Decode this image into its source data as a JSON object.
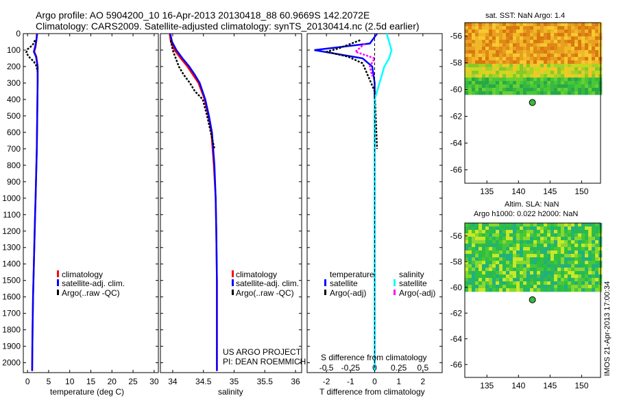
{
  "header": {
    "title_line1": "Argo profile: AO 5904200_10 16-Apr-2013 20130418_88 60.9669S 142.2072E",
    "title_line2": "Climatology: CARS2009. Satellite-adjusted climatology: synTS_20130414.nc (2.5d earlier)"
  },
  "credit": {
    "line1": "US ARGO PROJECT",
    "line2": "PI: DEAN ROEMMICH",
    "imos_stamp": "IMOS 21-Apr-2013 17:00:34"
  },
  "colors": {
    "climatology": "#ff0000",
    "satellite": "#0000ff",
    "argo": "#000000",
    "satellite_s": "#00ffff",
    "argo_s": "#ff00ff"
  },
  "panels": {
    "temperature": {
      "xlabel": "temperature (deg C)",
      "legend": [
        "climatology",
        "satellite-adj. clim.",
        "Argo(..raw -QC)"
      ]
    },
    "salinity": {
      "xlabel": "salinity",
      "legend": [
        "climatology",
        "satellite-adj. clim.",
        "Argo(..raw -QC)"
      ]
    },
    "difference": {
      "xlabel": "T difference from climatology",
      "top_label": "S difference from climatology",
      "legend_t_head": "temperature",
      "legend_s_head": "salinity",
      "legend_t": [
        "satellite",
        "Argo(-adj)"
      ],
      "legend_s": [
        "satellite",
        "Argo(-adj)"
      ]
    },
    "sst_map": {
      "title": "sat. SST: NaN Argo: 1.4"
    },
    "sla_map": {
      "title_line1": "Altim. SLA: NaN",
      "title_line2": "Argo h1000: 0.022 h2000: NaN"
    }
  },
  "chart_data": [
    {
      "type": "line",
      "name": "temperature-profile",
      "x_range": [
        -1,
        31
      ],
      "y_range": [
        2060,
        0
      ],
      "y_inverted": true,
      "xticks": [
        0,
        5,
        10,
        15,
        20,
        25,
        30
      ],
      "yticks": [
        0,
        100,
        200,
        300,
        400,
        500,
        600,
        700,
        800,
        900,
        1000,
        1100,
        1200,
        1300,
        1400,
        1500,
        1600,
        1700,
        1800,
        1900,
        2000
      ],
      "series": [
        {
          "name": "climatology",
          "x": [
            2.2,
            2.1,
            1.9,
            1.6,
            2.1,
            2.4,
            2.4,
            2.35,
            2.3,
            2.25,
            2.2,
            2.1,
            2.0,
            1.9,
            1.8,
            1.6,
            1.5,
            1.4,
            1.3,
            1.2,
            1.15,
            1.1
          ],
          "depth": [
            0,
            40,
            80,
            110,
            140,
            200,
            300,
            400,
            500,
            600,
            700,
            800,
            900,
            1000,
            1100,
            1300,
            1400,
            1500,
            1600,
            1800,
            1900,
            2050
          ]
        },
        {
          "name": "satellite-adj. clim.",
          "x": [
            2.3,
            2.1,
            1.8,
            1.5,
            2.0,
            2.4,
            2.4,
            2.35,
            2.3,
            2.25,
            2.2,
            2.1,
            2.0,
            1.9,
            1.8,
            1.6,
            1.5,
            1.4,
            1.3,
            1.2,
            1.15,
            1.1
          ],
          "depth": [
            0,
            40,
            80,
            110,
            140,
            200,
            300,
            400,
            500,
            600,
            700,
            800,
            900,
            1000,
            1100,
            1300,
            1400,
            1500,
            1600,
            1800,
            1900,
            2050
          ]
        },
        {
          "name": "Argo(..raw -QC)",
          "x": [
            1.8,
            1.2,
            0.0,
            -0.3,
            0.3,
            1.5,
            2.2,
            2.3
          ],
          "depth": [
            40,
            70,
            95,
            115,
            140,
            170,
            200,
            230
          ]
        }
      ]
    },
    {
      "type": "line",
      "name": "salinity-profile",
      "x_range": [
        33.8,
        36.1
      ],
      "y_range": [
        2060,
        0
      ],
      "y_inverted": true,
      "xticks": [
        34,
        34.5,
        35,
        35.5,
        36
      ],
      "series": [
        {
          "name": "climatology",
          "x": [
            33.95,
            33.97,
            34.03,
            34.13,
            34.24,
            34.33,
            34.42,
            34.52,
            34.58,
            34.63,
            34.67,
            34.7,
            34.71,
            34.72,
            34.72
          ],
          "depth": [
            0,
            50,
            100,
            150,
            200,
            250,
            300,
            400,
            500,
            600,
            800,
            1000,
            1200,
            1500,
            2050
          ]
        },
        {
          "name": "satellite-adj. clim.",
          "x": [
            33.96,
            33.99,
            34.06,
            34.16,
            34.27,
            34.36,
            34.44,
            34.53,
            34.59,
            34.64,
            34.68,
            34.7,
            34.71,
            34.72,
            34.72
          ],
          "depth": [
            0,
            50,
            100,
            150,
            200,
            250,
            300,
            400,
            500,
            600,
            800,
            1000,
            1200,
            1500,
            2050
          ]
        },
        {
          "name": "Argo(..raw -QC)",
          "x": [
            33.97,
            34.0,
            34.05,
            34.1,
            34.18,
            34.28,
            34.36,
            34.49,
            34.56,
            34.62,
            34.68
          ],
          "depth": [
            40,
            100,
            150,
            200,
            250,
            300,
            350,
            400,
            500,
            600,
            700
          ]
        }
      ]
    },
    {
      "type": "line",
      "name": "difference-from-climatology",
      "x_range": [
        -2.8,
        2.8
      ],
      "y_range": [
        2060,
        0
      ],
      "y_inverted": true,
      "xticks_T": [
        -2,
        -1,
        0,
        1,
        2
      ],
      "xticks_S_labels": [
        "-0.5",
        "-0.25",
        "0",
        "0.25",
        "0.5"
      ],
      "series": [
        {
          "name": "temperature satellite",
          "x": [
            0.1,
            -0.2,
            -2.5,
            -0.5,
            -0.1,
            0.0,
            0.0
          ],
          "depth": [
            0,
            60,
            100,
            150,
            200,
            300,
            2050
          ]
        },
        {
          "name": "temperature Argo(-adj)",
          "x": [
            -0.6,
            -1.5,
            -2.0,
            -1.1,
            -0.5,
            0.0,
            0.1
          ],
          "depth": [
            40,
            90,
            110,
            140,
            180,
            350,
            700
          ]
        },
        {
          "name": "salinity satellite",
          "x": [
            0.5,
            0.7,
            0.6,
            0.4,
            0.0,
            0.0
          ],
          "depth": [
            0,
            100,
            150,
            200,
            400,
            2050
          ]
        },
        {
          "name": "salinity Argo(-adj)",
          "x": [
            -0.4,
            -0.8,
            0.0,
            -0.2,
            -0.1
          ],
          "depth": [
            60,
            110,
            150,
            200,
            260
          ]
        }
      ]
    },
    {
      "type": "heatmap",
      "name": "sat-sst-map",
      "x_range": [
        131.5,
        153
      ],
      "y_range": [
        -67,
        -55
      ],
      "xticks": [
        135,
        140,
        145,
        150
      ],
      "yticks": [
        -56,
        -58,
        -60,
        -62,
        -64,
        -66
      ],
      "data_extent_lat": [
        -60.2,
        -55
      ],
      "argo_point": {
        "lon": 142.2072,
        "lat": -60.9669
      }
    },
    {
      "type": "heatmap",
      "name": "altim-sla-map",
      "x_range": [
        131.5,
        153
      ],
      "y_range": [
        -67,
        -55
      ],
      "xticks": [
        135,
        140,
        145,
        150
      ],
      "yticks": [
        -56,
        -58,
        -60,
        -62,
        -64,
        -66
      ],
      "data_extent_lat": [
        -60.1,
        -55
      ],
      "argo_point": {
        "lon": 142.2072,
        "lat": -60.9669
      }
    }
  ]
}
